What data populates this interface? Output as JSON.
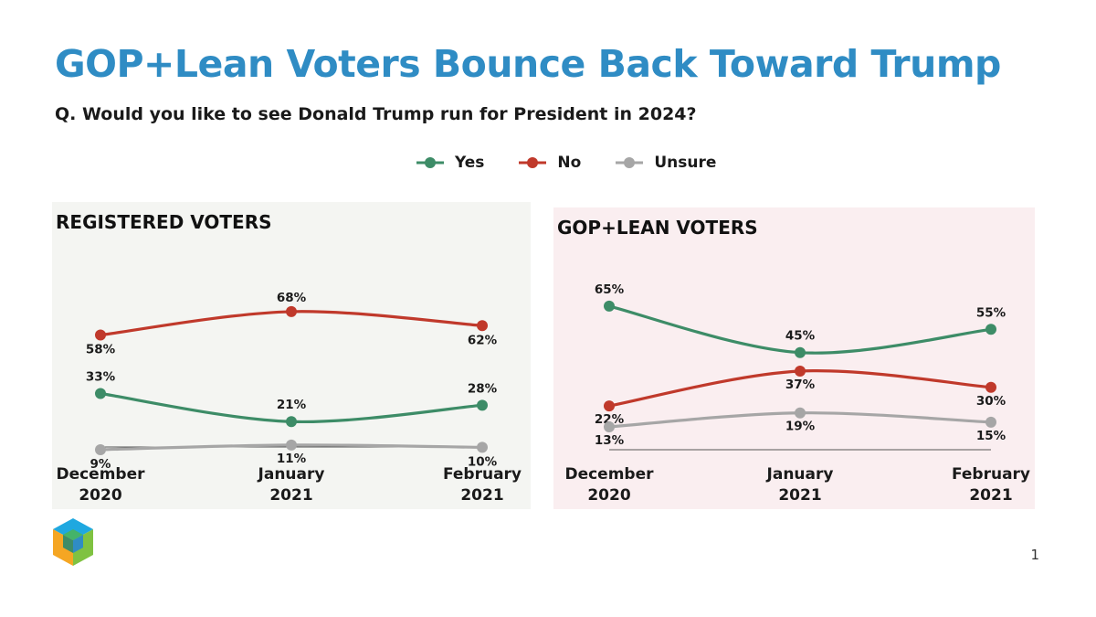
{
  "title": "GOP+Lean Voters Bounce Back Toward Trump",
  "subtitle": "Q. Would you like to see Donald Trump run for President in 2024?",
  "legend": [
    {
      "label": "Yes",
      "color": "#3d8c67"
    },
    {
      "label": "No",
      "color": "#c0392b"
    },
    {
      "label": "Unsure",
      "color": "#a6a6a6"
    }
  ],
  "page_number": "1",
  "chart_data": [
    {
      "type": "line",
      "title": "REGISTERED VOTERS",
      "categories": [
        [
          "December",
          "2020"
        ],
        [
          "January",
          "2021"
        ],
        [
          "February",
          "2021"
        ]
      ],
      "series": [
        {
          "name": "No",
          "color": "#c0392b",
          "values": [
            58,
            68,
            62
          ],
          "labels": [
            "58%",
            "68%",
            "62%"
          ]
        },
        {
          "name": "Yes",
          "color": "#3d8c67",
          "values": [
            33,
            21,
            28
          ],
          "labels": [
            "33%",
            "21%",
            "28%"
          ]
        },
        {
          "name": "Unsure",
          "color": "#a6a6a6",
          "values": [
            9,
            11,
            10
          ],
          "labels": [
            "9%",
            "11%",
            "10%"
          ]
        }
      ],
      "ylim": [
        0,
        100
      ],
      "grid": false
    },
    {
      "type": "line",
      "title": "GOP+LEAN VOTERS",
      "categories": [
        [
          "December",
          "2020"
        ],
        [
          "January",
          "2021"
        ],
        [
          "February",
          "2021"
        ]
      ],
      "series": [
        {
          "name": "Yes",
          "color": "#3d8c67",
          "values": [
            65,
            45,
            55
          ],
          "labels": [
            "65%",
            "45%",
            "55%"
          ]
        },
        {
          "name": "No",
          "color": "#c0392b",
          "values": [
            22,
            37,
            30
          ],
          "labels": [
            "22%",
            "37%",
            "30%"
          ]
        },
        {
          "name": "Unsure",
          "color": "#a6a6a6",
          "values": [
            13,
            19,
            15
          ],
          "labels": [
            "13%",
            "19%",
            "15%"
          ]
        }
      ],
      "ylim": [
        0,
        100
      ],
      "grid": false
    }
  ]
}
